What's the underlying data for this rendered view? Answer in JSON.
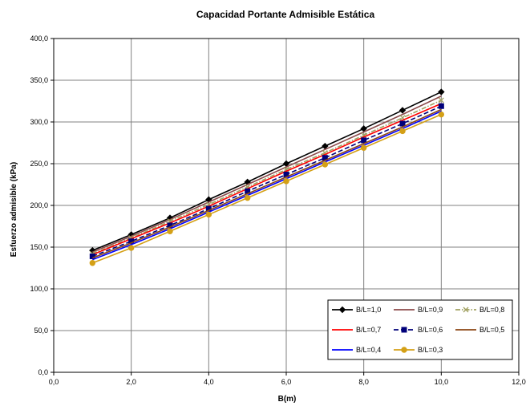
{
  "chart_data": {
    "type": "line",
    "title": "Capacidad Portante Admisible Estática",
    "xlabel": "B(m)",
    "ylabel": "Esfuerzo admisible (kPa)",
    "xlim": [
      0,
      12
    ],
    "ylim": [
      0,
      400
    ],
    "xticks": [
      0,
      2,
      4,
      6,
      8,
      10,
      12
    ],
    "yticks": [
      0,
      50,
      100,
      150,
      200,
      250,
      300,
      350,
      400
    ],
    "xtick_labels": [
      "0,0",
      "2,0",
      "4,0",
      "6,0",
      "8,0",
      "10,0",
      "12,0"
    ],
    "ytick_labels": [
      "0,0",
      "50,0",
      "100,0",
      "150,0",
      "200,0",
      "250,0",
      "300,0",
      "350,0",
      "400,0"
    ],
    "grid": true,
    "legend_position": "bottom-right",
    "x": [
      1,
      2,
      3,
      4,
      5,
      6,
      7,
      8,
      9,
      10
    ],
    "series": [
      {
        "name": "B/L=1,0",
        "color": "#000000",
        "marker": "diamond",
        "dash": "solid",
        "values": [
          146,
          165,
          185,
          207,
          228,
          250,
          271,
          292,
          314,
          336
        ]
      },
      {
        "name": "B/L=0,9",
        "color": "#8b4a4a",
        "marker": "none",
        "dash": "solid",
        "values": [
          144,
          163,
          183,
          204,
          225,
          246,
          267,
          288,
          309,
          331
        ]
      },
      {
        "name": "B/L=0,8",
        "color": "#a0a060",
        "marker": "x",
        "dash": "dashdot",
        "values": [
          142,
          161,
          181,
          201,
          222,
          243,
          263,
          284,
          305,
          326
        ]
      },
      {
        "name": "B/L=0,7",
        "color": "#ff0000",
        "marker": "none",
        "dash": "solid",
        "values": [
          141,
          160,
          179,
          199,
          220,
          241,
          261,
          282,
          302,
          322
        ]
      },
      {
        "name": "B/L=0,6",
        "color": "#00007a",
        "marker": "square",
        "dash": "dash",
        "values": [
          139,
          157,
          176,
          196,
          217,
          237,
          257,
          278,
          298,
          319
        ]
      },
      {
        "name": "B/L=0,5",
        "color": "#8b4513",
        "marker": "none",
        "dash": "solid",
        "values": [
          137,
          155,
          174,
          194,
          214,
          234,
          254,
          274,
          294,
          315
        ]
      },
      {
        "name": "B/L=0,4",
        "color": "#0000ff",
        "marker": "none",
        "dash": "solid",
        "values": [
          135,
          153,
          172,
          192,
          212,
          232,
          252,
          272,
          292,
          313
        ]
      },
      {
        "name": "B/L=0,3",
        "color": "#d4a017",
        "marker": "circle",
        "dash": "solid",
        "values": [
          131,
          149,
          169,
          189,
          209,
          229,
          249,
          269,
          289,
          309
        ]
      }
    ]
  }
}
